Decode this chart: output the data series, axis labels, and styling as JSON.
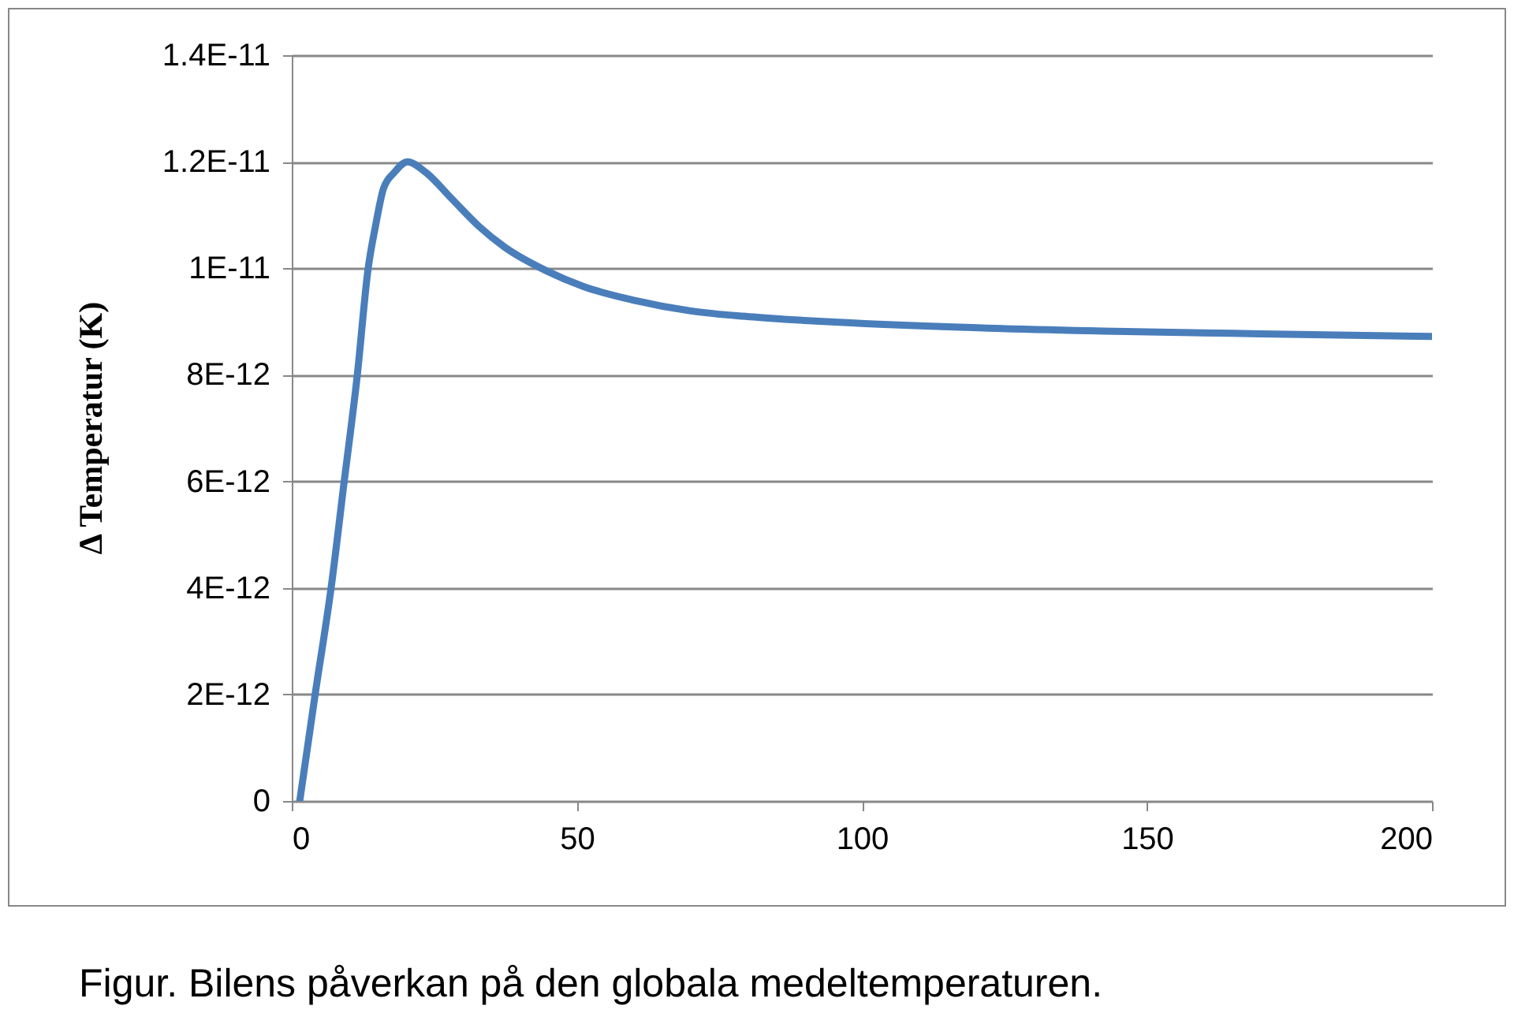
{
  "chart_data": {
    "type": "line",
    "ylabel": "Δ Temperatur (K)",
    "annotations": [
      "Figur. Bilens påverkan på den globala medeltemperaturen."
    ],
    "x": [
      1.4,
      4.1,
      6.9,
      9.2,
      11.5,
      13.4,
      14.7,
      16.1,
      18,
      20.3,
      23.5,
      28.1,
      32.7,
      37.3,
      44.7,
      51.1,
      60,
      70,
      79,
      87,
      115,
      142.5,
      170,
      200
    ],
    "series": [
      {
        "color": "#4a7ebb",
        "values": [
          0,
          2e-12,
          4e-12,
          6e-12,
          8e-12,
          1e-11,
          1.08e-11,
          1.15e-11,
          1.18e-11,
          1.2e-11,
          1.18e-11,
          1.13e-11,
          1.08e-11,
          1.04e-11,
          9.95e-12,
          9.66e-12,
          9.4e-12,
          9.2e-12,
          9.1e-12,
          9.04e-12,
          8.9e-12,
          8.82e-12,
          8.77e-12,
          8.72e-12
        ]
      }
    ],
    "xlim": [
      0,
      200
    ],
    "xticks": [
      0,
      50,
      100,
      150,
      200
    ],
    "ylim": [
      0,
      1.4e-11
    ],
    "yticks": [
      {
        "value": 0,
        "label": "0"
      },
      {
        "value": 2e-12,
        "label": "2E-12"
      },
      {
        "value": 4e-12,
        "label": "4E-12"
      },
      {
        "value": 6e-12,
        "label": "6E-12"
      },
      {
        "value": 8e-12,
        "label": "8E-12"
      },
      {
        "value": 1e-11,
        "label": "1E-11"
      },
      {
        "value": 1.2e-11,
        "label": "1.2E-11"
      },
      {
        "value": 1.4e-11,
        "label": "1.4E-11"
      }
    ],
    "grid": "y",
    "marker": "none",
    "line_style": "solid"
  }
}
